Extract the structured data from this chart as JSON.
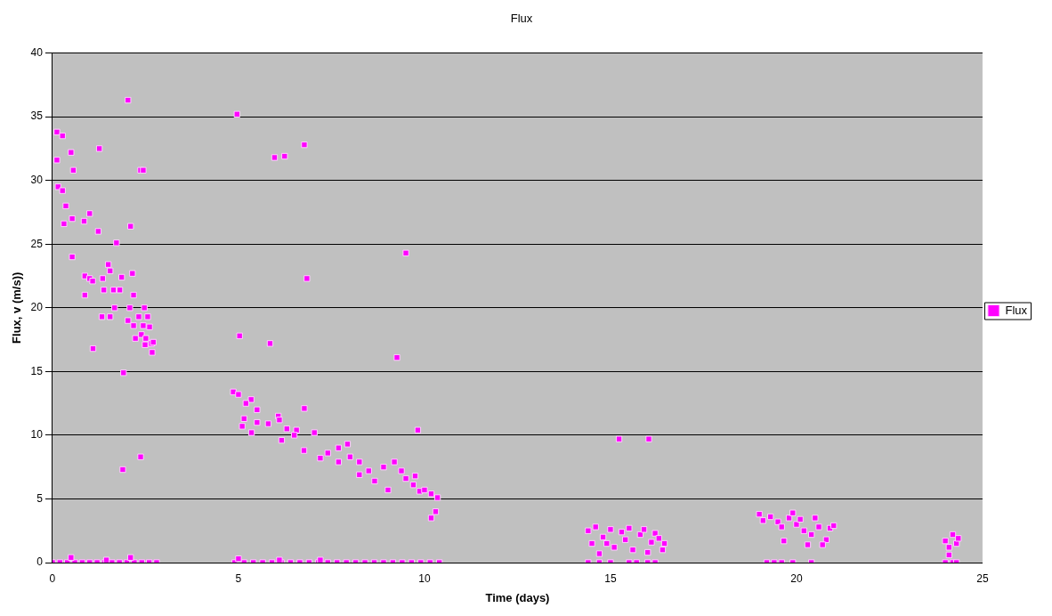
{
  "chart_data": {
    "type": "scatter",
    "title": "Flux",
    "xlabel": "Time (days)",
    "ylabel": "Flux, v (m/s))",
    "xlim": [
      0,
      25
    ],
    "xticks": [
      0,
      5,
      10,
      15,
      20,
      25
    ],
    "ylim": [
      0,
      40
    ],
    "yticks": [
      0,
      5,
      10,
      15,
      20,
      25,
      30,
      35,
      40
    ],
    "grid": "y",
    "legend": "right",
    "marker": "square",
    "series": [
      {
        "name": "Flux",
        "color": "#ff00ff",
        "x": [
          0.12,
          0.27,
          0.12,
          0.5,
          0.15,
          0.27,
          0.36,
          0.31,
          0.53,
          0.56,
          0.85,
          1.0,
          0.53,
          0.87,
          1.0,
          1.08,
          0.87,
          1.09,
          1.26,
          1.23,
          1.35,
          1.38,
          1.5,
          1.55,
          1.33,
          1.55,
          1.64,
          1.81,
          1.72,
          1.67,
          1.86,
          2.03,
          1.91,
          1.89,
          2.03,
          2.1,
          2.18,
          2.15,
          2.23,
          2.18,
          2.37,
          2.44,
          2.32,
          2.39,
          2.44,
          2.51,
          2.56,
          2.61,
          2.49,
          2.66,
          2.68,
          2.71,
          2.37,
          2.08,
          2.47,
          4.96,
          5.03,
          5.85,
          5.97,
          6.24,
          6.77,
          6.84,
          6.77,
          9.5,
          9.26,
          9.82,
          4.86,
          5.34,
          5.15,
          5.35,
          6.07,
          6.16,
          6.56,
          6.76,
          7.04,
          7.2,
          7.69,
          7.93,
          7.69,
          8.25,
          8.25,
          8.66,
          8.9,
          9.19,
          9.02,
          9.38,
          9.75,
          9.87,
          10.18,
          10.35,
          10.3,
          10.18,
          5.0,
          5.2,
          5.5,
          5.8,
          6.3,
          6.5,
          7.4,
          8.0,
          8.5,
          9.5,
          9.7,
          10.0,
          5.1,
          5.5,
          6.1,
          15.23,
          16.03,
          14.4,
          14.5,
          14.6,
          14.7,
          14.8,
          15.0,
          15.1,
          15.3,
          15.5,
          15.6,
          15.8,
          15.9,
          16.0,
          16.1,
          16.2,
          16.3,
          16.4,
          16.45,
          15.4,
          14.9,
          19.0,
          19.1,
          19.3,
          19.5,
          19.6,
          19.8,
          19.9,
          20.0,
          20.1,
          20.2,
          20.4,
          20.5,
          20.6,
          20.8,
          20.9,
          21.0,
          19.66,
          20.3,
          20.7,
          24.0,
          24.1,
          24.2,
          24.3,
          24.35,
          24.1,
          0,
          0.2,
          0.4,
          0.6,
          0.8,
          1.0,
          1.2,
          1.4,
          1.6,
          1.8,
          2.0,
          2.2,
          2.4,
          2.6,
          2.8,
          0.5,
          1.45,
          2.1,
          4.9,
          5.15,
          5.4,
          5.65,
          5.9,
          6.15,
          6.4,
          6.65,
          6.9,
          7.15,
          7.4,
          7.65,
          7.9,
          8.15,
          8.4,
          8.65,
          8.9,
          9.15,
          9.4,
          9.65,
          9.9,
          10.15,
          10.4,
          5.0,
          7.2,
          6.1,
          14.4,
          14.7,
          15.0,
          15.5,
          15.7,
          16.0,
          16.2,
          19.2,
          19.4,
          19.6,
          19.9,
          20.4,
          24.0,
          24.2,
          24.3
        ],
        "values": [
          33.8,
          33.5,
          31.6,
          32.2,
          29.5,
          29.2,
          28,
          26.6,
          27,
          30.8,
          26.8,
          27.4,
          24,
          22.5,
          22.3,
          22.1,
          21,
          16.8,
          32.5,
          26,
          22.3,
          21.4,
          23.4,
          22.9,
          19.3,
          19.3,
          21.4,
          21.4,
          25.1,
          20,
          22.4,
          19,
          14.9,
          7.3,
          36.3,
          26.4,
          21,
          22.7,
          17.6,
          18.6,
          30.8,
          30.8,
          19.3,
          17.9,
          18.6,
          17.6,
          19.3,
          18.5,
          17.1,
          17.2,
          16.5,
          17.3,
          8.3,
          20,
          20,
          35.2,
          17.8,
          17.2,
          31.8,
          31.9,
          32.8,
          22.3,
          12.1,
          24.3,
          16.1,
          10.4,
          13.4,
          12.8,
          11.3,
          10.2,
          11.5,
          9.6,
          10.4,
          8.8,
          10.2,
          8.2,
          9.0,
          9.3,
          7.9,
          7.9,
          6.9,
          6.4,
          7.5,
          7.9,
          5.7,
          7.2,
          6.8,
          5.6,
          5.4,
          5.1,
          4.0,
          3.5,
          13.2,
          12.5,
          11.0,
          10.9,
          10.5,
          10.0,
          8.6,
          8.3,
          7.2,
          6.6,
          6.1,
          5.7,
          10.7,
          12.0,
          11.2,
          9.7,
          9.7,
          2.5,
          1.5,
          2.8,
          0.7,
          2.0,
          2.6,
          1.2,
          2.4,
          2.7,
          1.0,
          2.2,
          2.6,
          0.8,
          1.6,
          2.3,
          1.9,
          1.0,
          1.5,
          1.8,
          1.5,
          3.8,
          3.3,
          3.6,
          3.2,
          2.8,
          3.5,
          3.9,
          3.0,
          3.4,
          2.5,
          2.2,
          3.5,
          2.8,
          1.8,
          2.7,
          2.9,
          1.7,
          1.4,
          1.4,
          1.7,
          1.2,
          2.2,
          1.5,
          1.9,
          0.6,
          0,
          0,
          0,
          0,
          0,
          0,
          0,
          0,
          0,
          0,
          0,
          0,
          0,
          0,
          0,
          0.4,
          0.2,
          0.4,
          0,
          0,
          0,
          0,
          0,
          0,
          0,
          0,
          0,
          0,
          0,
          0,
          0,
          0,
          0,
          0,
          0,
          0,
          0,
          0,
          0,
          0,
          0,
          0.3,
          0.2,
          0.2,
          0,
          0,
          0,
          0,
          0,
          0,
          0,
          0,
          0,
          0,
          0,
          0,
          0,
          0,
          0
        ]
      }
    ]
  }
}
